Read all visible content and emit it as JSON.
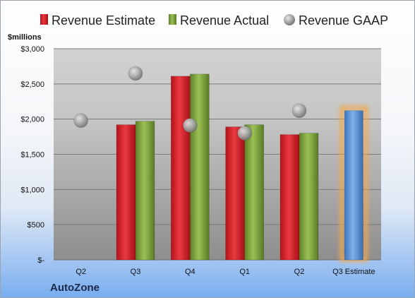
{
  "chart_data": {
    "type": "bar",
    "unit_label": "$millions",
    "categories": [
      "Q2",
      "Q3",
      "Q4",
      "Q1",
      "Q2",
      "Q3 Estimate"
    ],
    "series": [
      {
        "name": "Revenue Estimate",
        "kind": "bar",
        "color": "#d8202a",
        "values": [
          null,
          1920,
          2610,
          1890,
          1780,
          null
        ]
      },
      {
        "name": "Revenue Actual",
        "kind": "bar",
        "color": "#7fa03c",
        "values": [
          null,
          1970,
          2640,
          1920,
          1800,
          null
        ]
      },
      {
        "name": "Revenue GAAP",
        "kind": "marker",
        "color": "#a8a8a8",
        "values": [
          1980,
          2650,
          1910,
          1800,
          2120,
          null
        ]
      }
    ],
    "projection": {
      "category": "Q3 Estimate",
      "value": 2120,
      "color": "#5b92d6",
      "glow": "#f5a84a"
    },
    "yticks": [
      0,
      500,
      1000,
      1500,
      2000,
      2500,
      3000
    ],
    "ytick_labels": [
      "$-",
      "$500",
      "$1,000",
      "$1,500",
      "$2,000",
      "$2,500",
      "$3,000"
    ],
    "ylim": [
      0,
      3000
    ],
    "grid": true,
    "legend_position": "top"
  },
  "company": "AutoZone"
}
